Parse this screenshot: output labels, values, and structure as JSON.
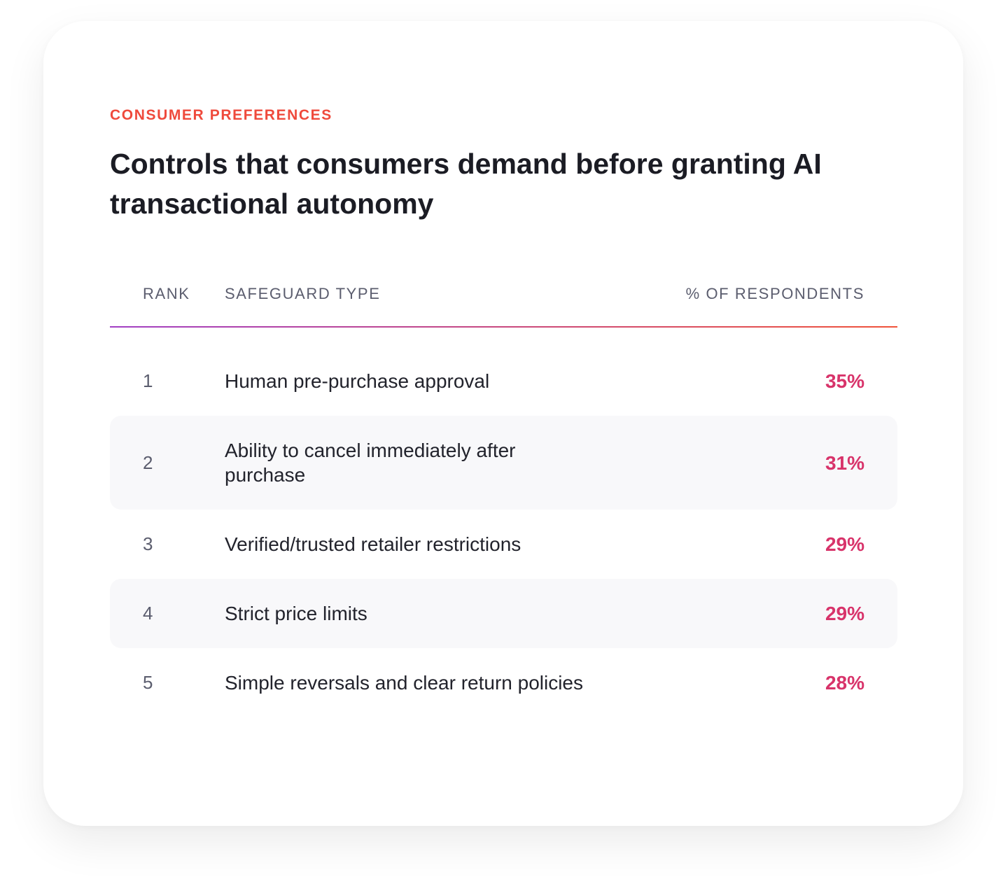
{
  "eyebrow": "CONSUMER PREFERENCES",
  "title": "Controls that consumers demand before granting AI transactional autonomy",
  "table": {
    "headers": [
      "RANK",
      "SAFEGUARD TYPE",
      "% OF RESPONDENTS"
    ],
    "rows": [
      [
        1,
        "Human pre-purchase approval",
        "35%"
      ],
      [
        2,
        "Ability to cancel immediately after purchase",
        "31%"
      ],
      [
        3,
        "Verified/trusted retailer restrictions",
        "29%"
      ],
      [
        4,
        "Strict price limits",
        "29%"
      ],
      [
        5,
        "Simple reversals and clear return policies",
        "28%"
      ]
    ]
  }
}
